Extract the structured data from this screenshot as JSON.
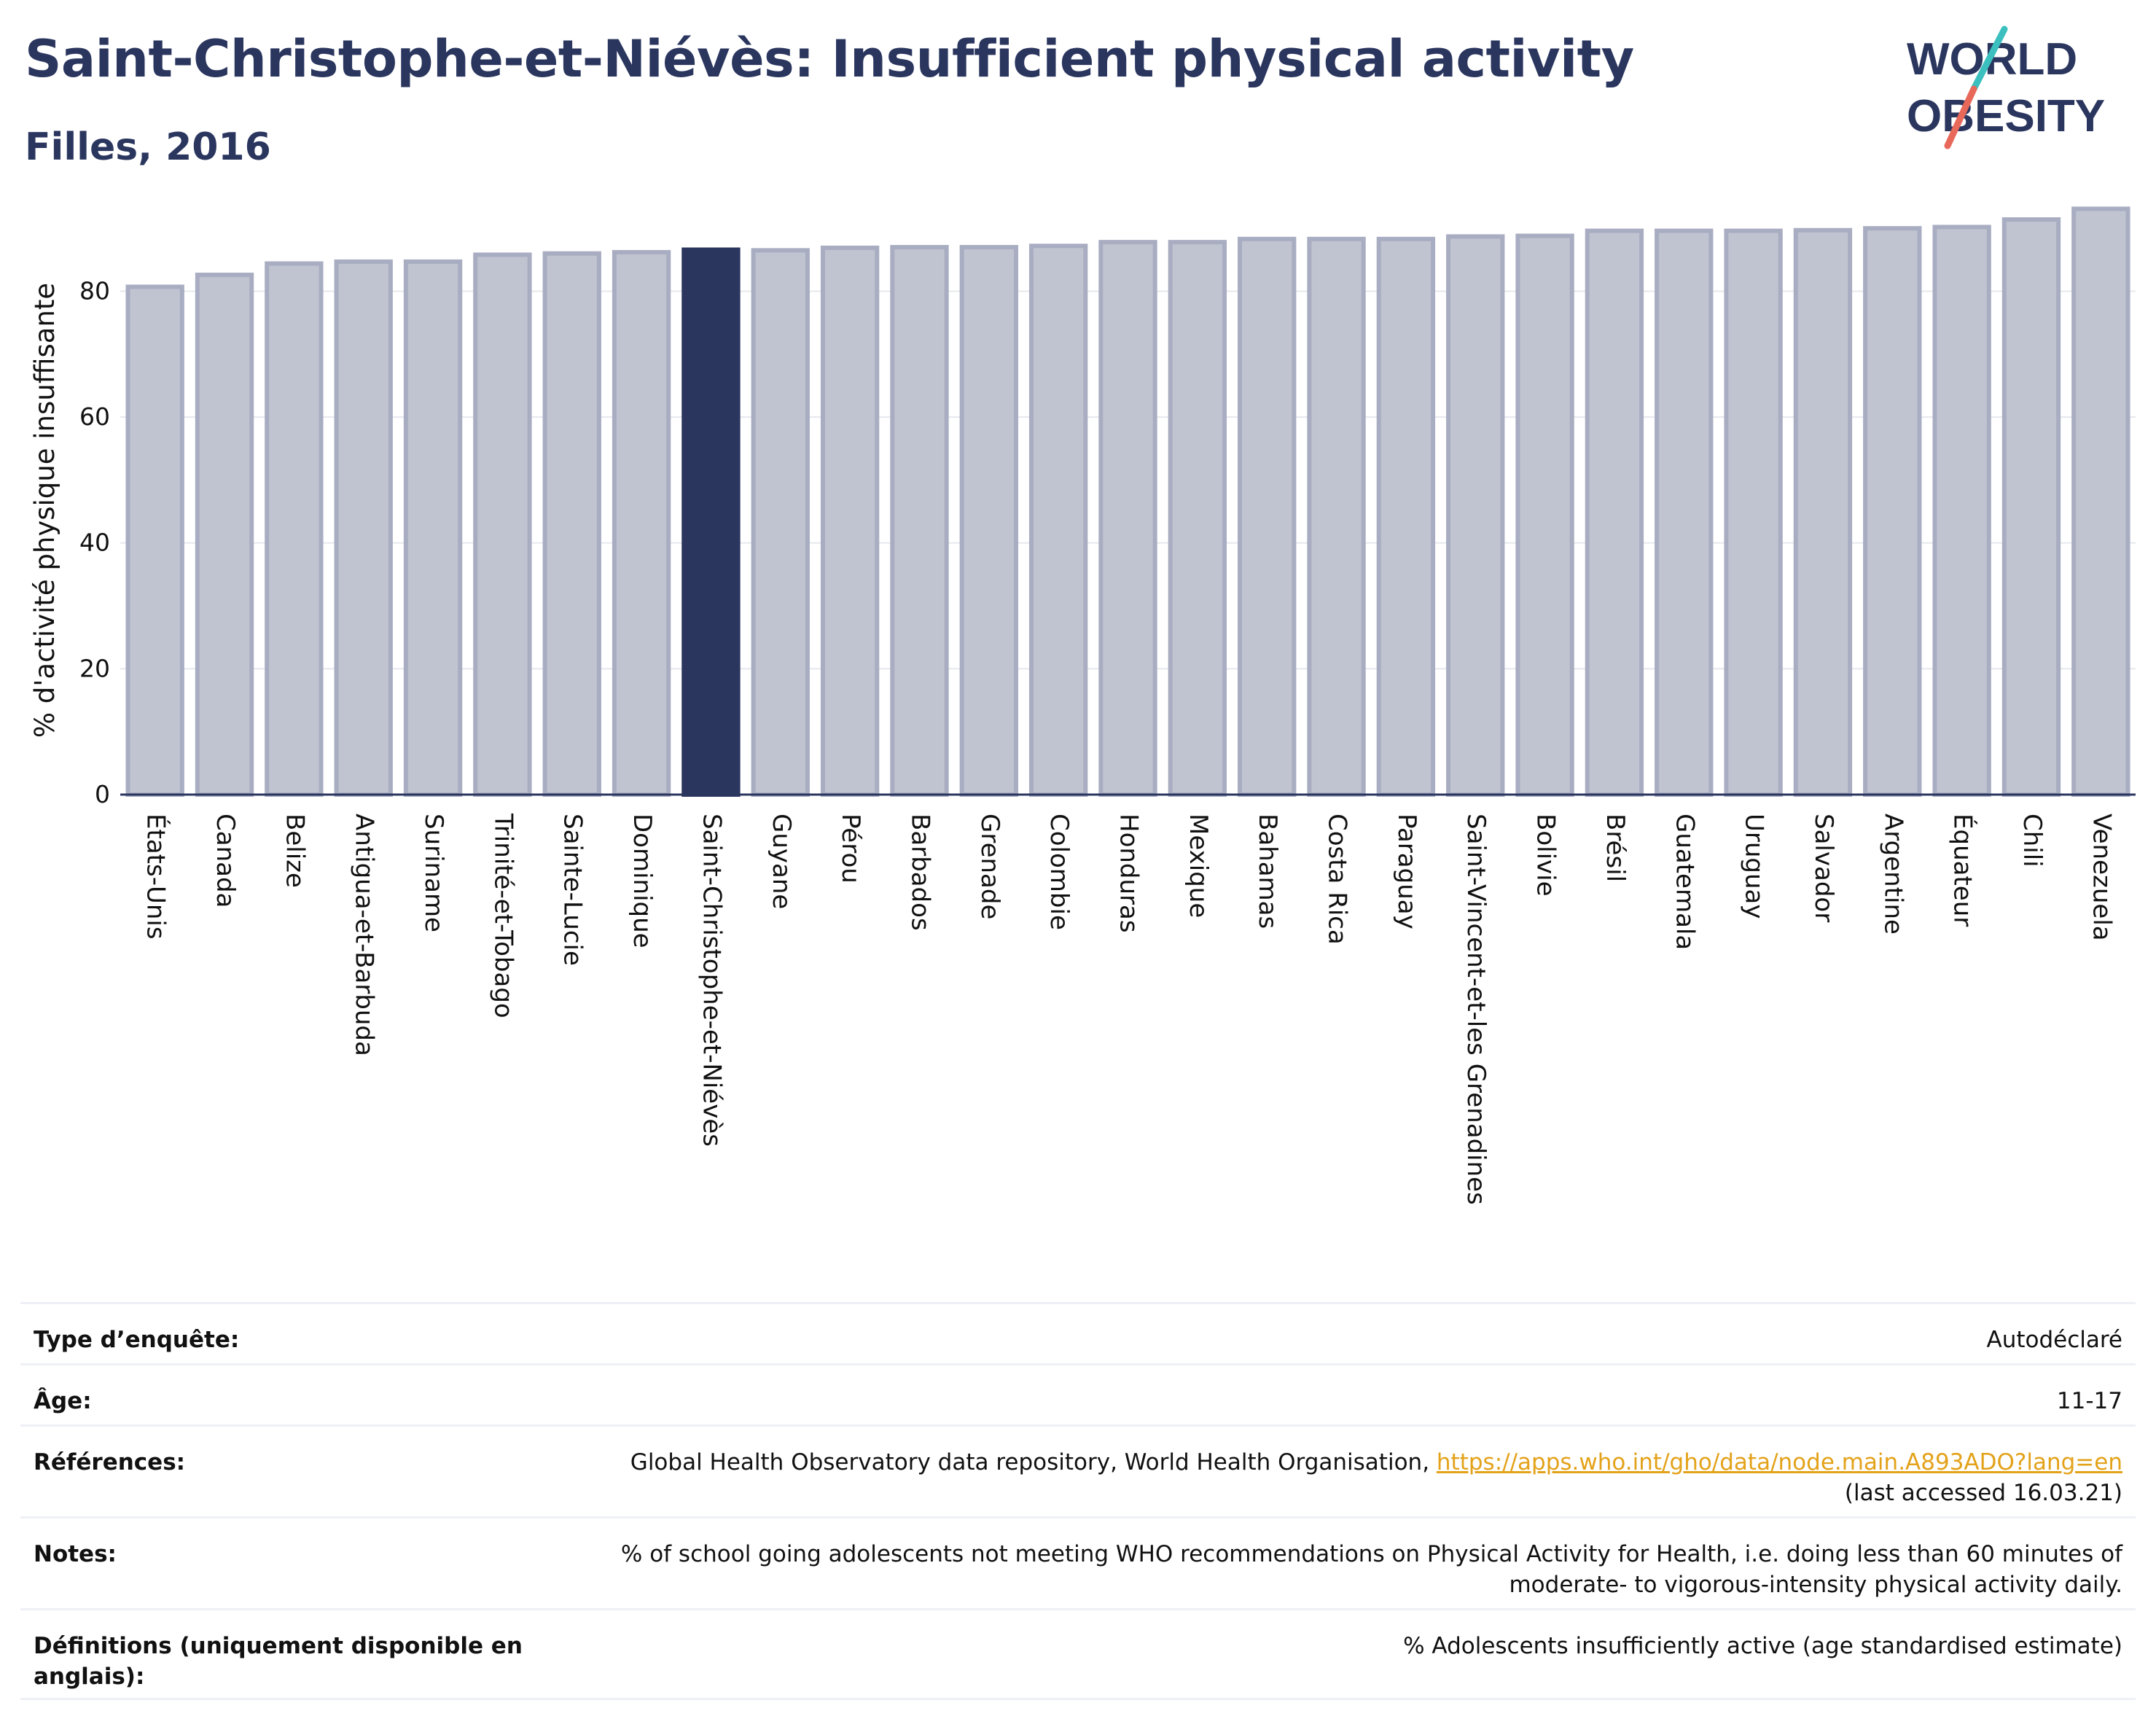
{
  "header": {
    "title": "Saint-Christophe-et-Niévès: Insufficient physical activity",
    "subtitle": "Filles, 2016",
    "logo_line1": "WORLD",
    "logo_line2": "OBESITY"
  },
  "chart_data": {
    "type": "bar",
    "ylabel": "% d'activité physique insuffisante",
    "ylim": [
      0,
      95
    ],
    "yticks": [
      0,
      20,
      40,
      60,
      80
    ],
    "grid": true,
    "highlight": "Saint-Christophe-et-Niévès",
    "categories": [
      "États-Unis",
      "Canada",
      "Belize",
      "Antigua-et-Barbuda",
      "Suriname",
      "Trinité-et-Tobago",
      "Sainte-Lucie",
      "Dominique",
      "Saint-Christophe-et-Niévès",
      "Guyane",
      "Pérou",
      "Barbados",
      "Grenade",
      "Colombie",
      "Honduras",
      "Mexique",
      "Bahamas",
      "Costa Rica",
      "Paraguay",
      "Saint-Vincent-et-les Grenadines",
      "Bolivie",
      "Brésil",
      "Guatemala",
      "Uruguay",
      "Salvador",
      "Argentine",
      "Équateur",
      "Chili",
      "Venezuela"
    ],
    "values": [
      80.7,
      82.6,
      84.4,
      84.7,
      84.7,
      85.8,
      86.0,
      86.2,
      86.6,
      86.5,
      86.9,
      87.0,
      87.0,
      87.2,
      87.8,
      87.8,
      88.3,
      88.3,
      88.3,
      88.7,
      88.8,
      89.6,
      89.6,
      89.6,
      89.7,
      90.0,
      90.2,
      91.4,
      93.1
    ],
    "colors": {
      "bar": "#c0c3d0",
      "bar_edge": "#a9adc2",
      "highlight": "#2b365f"
    }
  },
  "info": {
    "survey_label": "Type d’enquête:",
    "survey_value": "Autodéclaré",
    "age_label": "Âge:",
    "age_value": "11-17",
    "refs_label": "Références:",
    "refs_text": "Global Health Observatory data repository, World Health Organisation, ",
    "refs_link": "https://apps.who.int/gho/data/node.main.A893ADO?lang=en",
    "refs_accessed": "(last accessed 16.03.21)",
    "notes_label": "Notes:",
    "notes_line1": "% of school going adolescents not meeting WHO recommendations on Physical Activity for Health, i.e. doing less than 60 minutes of",
    "notes_line2": "moderate- to vigorous-intensity physical activity daily.",
    "defs_label": "Définitions (uniquement disponible en anglais):",
    "defs_value": "% Adolescents insufficiently active (age standardised estimate)"
  }
}
